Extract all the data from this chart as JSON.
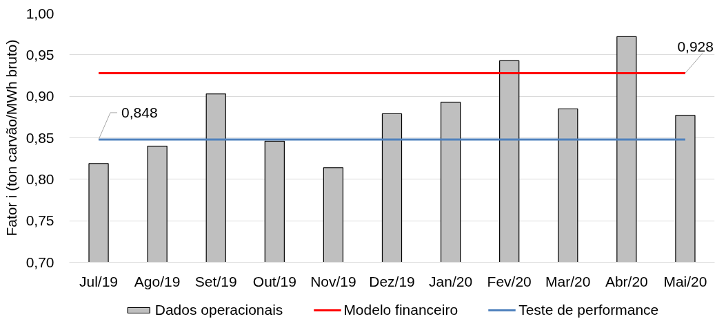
{
  "chart_data": {
    "type": "bar",
    "categories": [
      "Jul/19",
      "Ago/19",
      "Set/19",
      "Out/19",
      "Nov/19",
      "Dez/19",
      "Jan/20",
      "Fev/20",
      "Mar/20",
      "Abr/20",
      "Mai/20"
    ],
    "ylabel": "Fator i (ton carvão/MWh bruto)",
    "ylim": [
      0.7,
      1.0
    ],
    "yticks": [
      {
        "value": 0.7,
        "label": "0,70"
      },
      {
        "value": 0.75,
        "label": "0,75"
      },
      {
        "value": 0.8,
        "label": "0,80"
      },
      {
        "value": 0.85,
        "label": "0,85"
      },
      {
        "value": 0.9,
        "label": "0,90"
      },
      {
        "value": 0.95,
        "label": "0,95"
      },
      {
        "value": 1.0,
        "label": "1,00"
      }
    ],
    "grid": "y",
    "legend": "bottom",
    "series": [
      {
        "name": "Dados operacionais",
        "color": "#bfbfbf",
        "values": [
          0.819,
          0.84,
          0.903,
          0.846,
          0.814,
          0.879,
          0.893,
          0.943,
          0.885,
          0.972,
          0.877
        ]
      },
      {
        "name": "Modelo financeiro",
        "type": "line",
        "color": "#ff0000",
        "values": [
          0.928,
          0.928,
          0.928,
          0.928,
          0.928,
          0.928,
          0.928,
          0.928,
          0.928,
          0.928,
          0.928
        ],
        "value_labels": [
          null,
          null,
          null,
          null,
          null,
          null,
          null,
          null,
          null,
          null,
          "0,928"
        ]
      },
      {
        "name": "Teste de performance",
        "type": "line",
        "color": "#4f81bd",
        "values": [
          0.848,
          0.848,
          0.848,
          0.848,
          0.848,
          0.848,
          0.848,
          0.848,
          0.848,
          0.848,
          0.848
        ],
        "value_labels": [
          "0,848",
          null,
          null,
          null,
          null,
          null,
          null,
          null,
          null,
          null,
          null
        ]
      }
    ]
  }
}
